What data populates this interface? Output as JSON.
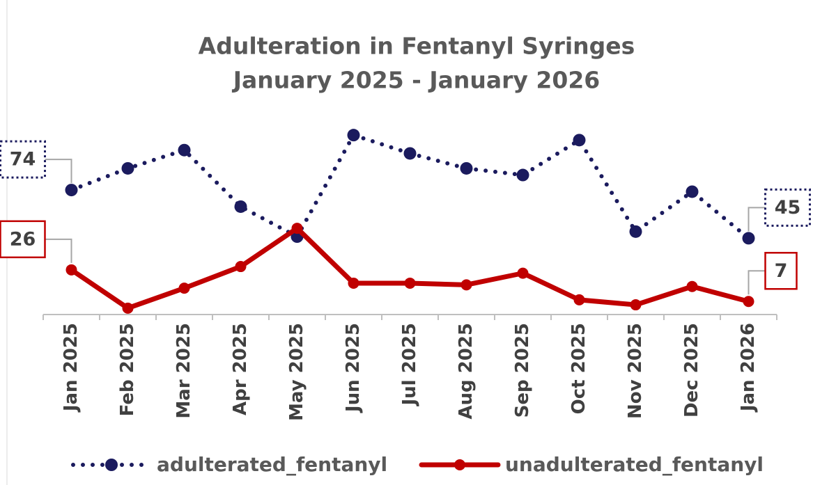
{
  "chart_data": {
    "type": "line",
    "title": "Adulteration in Fentanyl Syringes",
    "subtitle": "January 2025 - January 2026",
    "categories": [
      "Jan 2025",
      "Feb 2025",
      "Mar 2025",
      "Apr 2025",
      "May 2025",
      "Jun 2025",
      "Jul 2025",
      "Aug 2025",
      "Sep 2025",
      "Oct 2025",
      "Nov 2025",
      "Dec 2025",
      "Jan 2026"
    ],
    "series": [
      {
        "name": "adulterated_fentanyl",
        "color": "#1b1b5e",
        "dashed": true,
        "values": [
          74,
          87,
          98,
          64,
          46,
          107,
          96,
          87,
          83,
          104,
          49,
          73,
          45
        ]
      },
      {
        "name": "unadulterated_fentanyl",
        "color": "#c00000",
        "dashed": false,
        "values": [
          26,
          3,
          15,
          28,
          51,
          18,
          18,
          17,
          24,
          8,
          5,
          16,
          7
        ]
      }
    ],
    "ylim": [
      0,
      110
    ],
    "legend": "bottom"
  }
}
